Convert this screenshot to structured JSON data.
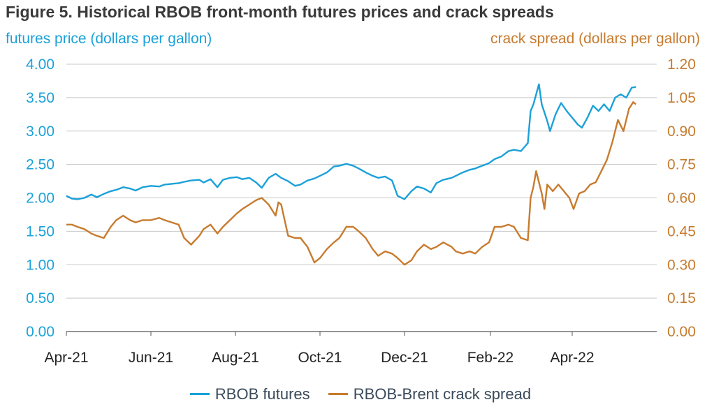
{
  "chart_data": {
    "type": "line",
    "title": "Figure 5. Historical RBOB front-month futures prices and crack spreads",
    "ylabel_left": "futures price (dollars per gallon)",
    "ylabel_right": "crack spread (dollars per gallon)",
    "ylim_left": [
      0,
      4
    ],
    "ylim_right": [
      0,
      1.2
    ],
    "yticks_left": [
      "0.00",
      "0.50",
      "1.00",
      "1.50",
      "2.00",
      "2.50",
      "3.00",
      "3.50",
      "4.00"
    ],
    "yticks_right": [
      "0.00",
      "0.15",
      "0.30",
      "0.45",
      "0.60",
      "0.75",
      "0.90",
      "1.05",
      "1.20"
    ],
    "xlim": [
      "2021-04-01",
      "2022-06-01"
    ],
    "xticks": [
      {
        "date": "2021-04-01",
        "label": "Apr-21"
      },
      {
        "date": "2021-06-01",
        "label": "Jun-21"
      },
      {
        "date": "2021-08-01",
        "label": "Aug-21"
      },
      {
        "date": "2021-10-01",
        "label": "Oct-21"
      },
      {
        "date": "2021-12-01",
        "label": "Dec-21"
      },
      {
        "date": "2022-02-01",
        "label": "Feb-22"
      },
      {
        "date": "2022-04-01",
        "label": "Apr-22"
      }
    ],
    "grid": true,
    "legend_position": "bottom",
    "series": [
      {
        "name": "RBOB futures",
        "axis": "left",
        "color": "#1ba1d9",
        "points": [
          [
            "2021-04-01",
            2.03
          ],
          [
            "2021-04-05",
            1.99
          ],
          [
            "2021-04-09",
            1.98
          ],
          [
            "2021-04-14",
            2.0
          ],
          [
            "2021-04-19",
            2.05
          ],
          [
            "2021-04-23",
            2.01
          ],
          [
            "2021-04-28",
            2.06
          ],
          [
            "2021-05-03",
            2.1
          ],
          [
            "2021-05-07",
            2.12
          ],
          [
            "2021-05-12",
            2.16
          ],
          [
            "2021-05-17",
            2.14
          ],
          [
            "2021-05-21",
            2.11
          ],
          [
            "2021-05-26",
            2.16
          ],
          [
            "2021-06-01",
            2.18
          ],
          [
            "2021-06-07",
            2.17
          ],
          [
            "2021-06-11",
            2.2
          ],
          [
            "2021-06-16",
            2.21
          ],
          [
            "2021-06-21",
            2.22
          ],
          [
            "2021-06-25",
            2.24
          ],
          [
            "2021-06-30",
            2.26
          ],
          [
            "2021-07-06",
            2.27
          ],
          [
            "2021-07-09",
            2.23
          ],
          [
            "2021-07-14",
            2.28
          ],
          [
            "2021-07-19",
            2.16
          ],
          [
            "2021-07-23",
            2.27
          ],
          [
            "2021-07-28",
            2.3
          ],
          [
            "2021-08-02",
            2.31
          ],
          [
            "2021-08-06",
            2.28
          ],
          [
            "2021-08-11",
            2.3
          ],
          [
            "2021-08-16",
            2.23
          ],
          [
            "2021-08-20",
            2.15
          ],
          [
            "2021-08-25",
            2.3
          ],
          [
            "2021-08-30",
            2.36
          ],
          [
            "2021-09-03",
            2.3
          ],
          [
            "2021-09-08",
            2.25
          ],
          [
            "2021-09-13",
            2.18
          ],
          [
            "2021-09-17",
            2.2
          ],
          [
            "2021-09-22",
            2.26
          ],
          [
            "2021-09-27",
            2.29
          ],
          [
            "2021-10-01",
            2.33
          ],
          [
            "2021-10-06",
            2.38
          ],
          [
            "2021-10-11",
            2.47
          ],
          [
            "2021-10-15",
            2.48
          ],
          [
            "2021-10-20",
            2.51
          ],
          [
            "2021-10-25",
            2.48
          ],
          [
            "2021-10-29",
            2.44
          ],
          [
            "2021-11-03",
            2.38
          ],
          [
            "2021-11-08",
            2.33
          ],
          [
            "2021-11-12",
            2.3
          ],
          [
            "2021-11-17",
            2.32
          ],
          [
            "2021-11-22",
            2.26
          ],
          [
            "2021-11-26",
            2.03
          ],
          [
            "2021-12-01",
            1.98
          ],
          [
            "2021-12-06",
            2.1
          ],
          [
            "2021-12-10",
            2.17
          ],
          [
            "2021-12-15",
            2.14
          ],
          [
            "2021-12-20",
            2.08
          ],
          [
            "2021-12-24",
            2.22
          ],
          [
            "2021-12-29",
            2.27
          ],
          [
            "2022-01-04",
            2.3
          ],
          [
            "2022-01-07",
            2.33
          ],
          [
            "2022-01-12",
            2.38
          ],
          [
            "2022-01-17",
            2.42
          ],
          [
            "2022-01-21",
            2.44
          ],
          [
            "2022-01-26",
            2.48
          ],
          [
            "2022-01-31",
            2.52
          ],
          [
            "2022-02-04",
            2.58
          ],
          [
            "2022-02-09",
            2.62
          ],
          [
            "2022-02-14",
            2.7
          ],
          [
            "2022-02-18",
            2.72
          ],
          [
            "2022-02-23",
            2.7
          ],
          [
            "2022-02-28",
            2.82
          ],
          [
            "2022-03-02",
            3.3
          ],
          [
            "2022-03-04",
            3.4
          ],
          [
            "2022-03-08",
            3.7
          ],
          [
            "2022-03-10",
            3.4
          ],
          [
            "2022-03-14",
            3.15
          ],
          [
            "2022-03-16",
            3.0
          ],
          [
            "2022-03-20",
            3.25
          ],
          [
            "2022-03-24",
            3.42
          ],
          [
            "2022-03-28",
            3.3
          ],
          [
            "2022-04-01",
            3.2
          ],
          [
            "2022-04-05",
            3.1
          ],
          [
            "2022-04-08",
            3.05
          ],
          [
            "2022-04-12",
            3.2
          ],
          [
            "2022-04-16",
            3.38
          ],
          [
            "2022-04-20",
            3.3
          ],
          [
            "2022-04-24",
            3.4
          ],
          [
            "2022-04-28",
            3.3
          ],
          [
            "2022-05-02",
            3.5
          ],
          [
            "2022-05-06",
            3.55
          ],
          [
            "2022-05-10",
            3.5
          ],
          [
            "2022-05-14",
            3.65
          ],
          [
            "2022-05-17",
            3.66
          ]
        ]
      },
      {
        "name": "RBOB-Brent crack spread",
        "axis": "right",
        "color": "#c77b2e",
        "points": [
          [
            "2021-04-01",
            0.48
          ],
          [
            "2021-04-05",
            0.48
          ],
          [
            "2021-04-09",
            0.47
          ],
          [
            "2021-04-14",
            0.46
          ],
          [
            "2021-04-19",
            0.44
          ],
          [
            "2021-04-23",
            0.43
          ],
          [
            "2021-04-28",
            0.42
          ],
          [
            "2021-05-03",
            0.47
          ],
          [
            "2021-05-07",
            0.5
          ],
          [
            "2021-05-12",
            0.52
          ],
          [
            "2021-05-17",
            0.5
          ],
          [
            "2021-05-21",
            0.49
          ],
          [
            "2021-05-26",
            0.5
          ],
          [
            "2021-06-01",
            0.5
          ],
          [
            "2021-06-07",
            0.51
          ],
          [
            "2021-06-11",
            0.5
          ],
          [
            "2021-06-16",
            0.49
          ],
          [
            "2021-06-21",
            0.48
          ],
          [
            "2021-06-25",
            0.42
          ],
          [
            "2021-06-30",
            0.39
          ],
          [
            "2021-07-06",
            0.43
          ],
          [
            "2021-07-09",
            0.46
          ],
          [
            "2021-07-14",
            0.48
          ],
          [
            "2021-07-19",
            0.44
          ],
          [
            "2021-07-23",
            0.47
          ],
          [
            "2021-07-28",
            0.5
          ],
          [
            "2021-08-02",
            0.53
          ],
          [
            "2021-08-06",
            0.55
          ],
          [
            "2021-08-11",
            0.57
          ],
          [
            "2021-08-16",
            0.59
          ],
          [
            "2021-08-20",
            0.6
          ],
          [
            "2021-08-25",
            0.57
          ],
          [
            "2021-08-30",
            0.52
          ],
          [
            "2021-09-01",
            0.58
          ],
          [
            "2021-09-03",
            0.57
          ],
          [
            "2021-09-08",
            0.43
          ],
          [
            "2021-09-13",
            0.42
          ],
          [
            "2021-09-17",
            0.42
          ],
          [
            "2021-09-22",
            0.38
          ],
          [
            "2021-09-27",
            0.31
          ],
          [
            "2021-10-01",
            0.33
          ],
          [
            "2021-10-06",
            0.37
          ],
          [
            "2021-10-11",
            0.4
          ],
          [
            "2021-10-15",
            0.42
          ],
          [
            "2021-10-20",
            0.47
          ],
          [
            "2021-10-25",
            0.47
          ],
          [
            "2021-10-29",
            0.45
          ],
          [
            "2021-11-03",
            0.42
          ],
          [
            "2021-11-08",
            0.37
          ],
          [
            "2021-11-12",
            0.34
          ],
          [
            "2021-11-17",
            0.36
          ],
          [
            "2021-11-22",
            0.35
          ],
          [
            "2021-11-26",
            0.33
          ],
          [
            "2021-12-01",
            0.3
          ],
          [
            "2021-12-06",
            0.32
          ],
          [
            "2021-12-10",
            0.36
          ],
          [
            "2021-12-15",
            0.39
          ],
          [
            "2021-12-20",
            0.37
          ],
          [
            "2021-12-24",
            0.38
          ],
          [
            "2021-12-29",
            0.4
          ],
          [
            "2022-01-04",
            0.38
          ],
          [
            "2022-01-07",
            0.36
          ],
          [
            "2022-01-12",
            0.35
          ],
          [
            "2022-01-17",
            0.36
          ],
          [
            "2022-01-21",
            0.35
          ],
          [
            "2022-01-26",
            0.38
          ],
          [
            "2022-01-31",
            0.4
          ],
          [
            "2022-02-04",
            0.47
          ],
          [
            "2022-02-09",
            0.47
          ],
          [
            "2022-02-14",
            0.48
          ],
          [
            "2022-02-18",
            0.47
          ],
          [
            "2022-02-23",
            0.42
          ],
          [
            "2022-02-28",
            0.41
          ],
          [
            "2022-03-02",
            0.6
          ],
          [
            "2022-03-04",
            0.65
          ],
          [
            "2022-03-06",
            0.72
          ],
          [
            "2022-03-08",
            0.67
          ],
          [
            "2022-03-10",
            0.62
          ],
          [
            "2022-03-12",
            0.55
          ],
          [
            "2022-03-14",
            0.66
          ],
          [
            "2022-03-18",
            0.63
          ],
          [
            "2022-03-22",
            0.66
          ],
          [
            "2022-03-26",
            0.63
          ],
          [
            "2022-03-30",
            0.6
          ],
          [
            "2022-04-02",
            0.55
          ],
          [
            "2022-04-06",
            0.62
          ],
          [
            "2022-04-10",
            0.63
          ],
          [
            "2022-04-14",
            0.66
          ],
          [
            "2022-04-18",
            0.67
          ],
          [
            "2022-04-22",
            0.72
          ],
          [
            "2022-04-26",
            0.77
          ],
          [
            "2022-04-30",
            0.85
          ],
          [
            "2022-05-04",
            0.95
          ],
          [
            "2022-05-08",
            0.9
          ],
          [
            "2022-05-12",
            1.0
          ],
          [
            "2022-05-15",
            1.03
          ],
          [
            "2022-05-17",
            1.02
          ]
        ]
      }
    ]
  }
}
